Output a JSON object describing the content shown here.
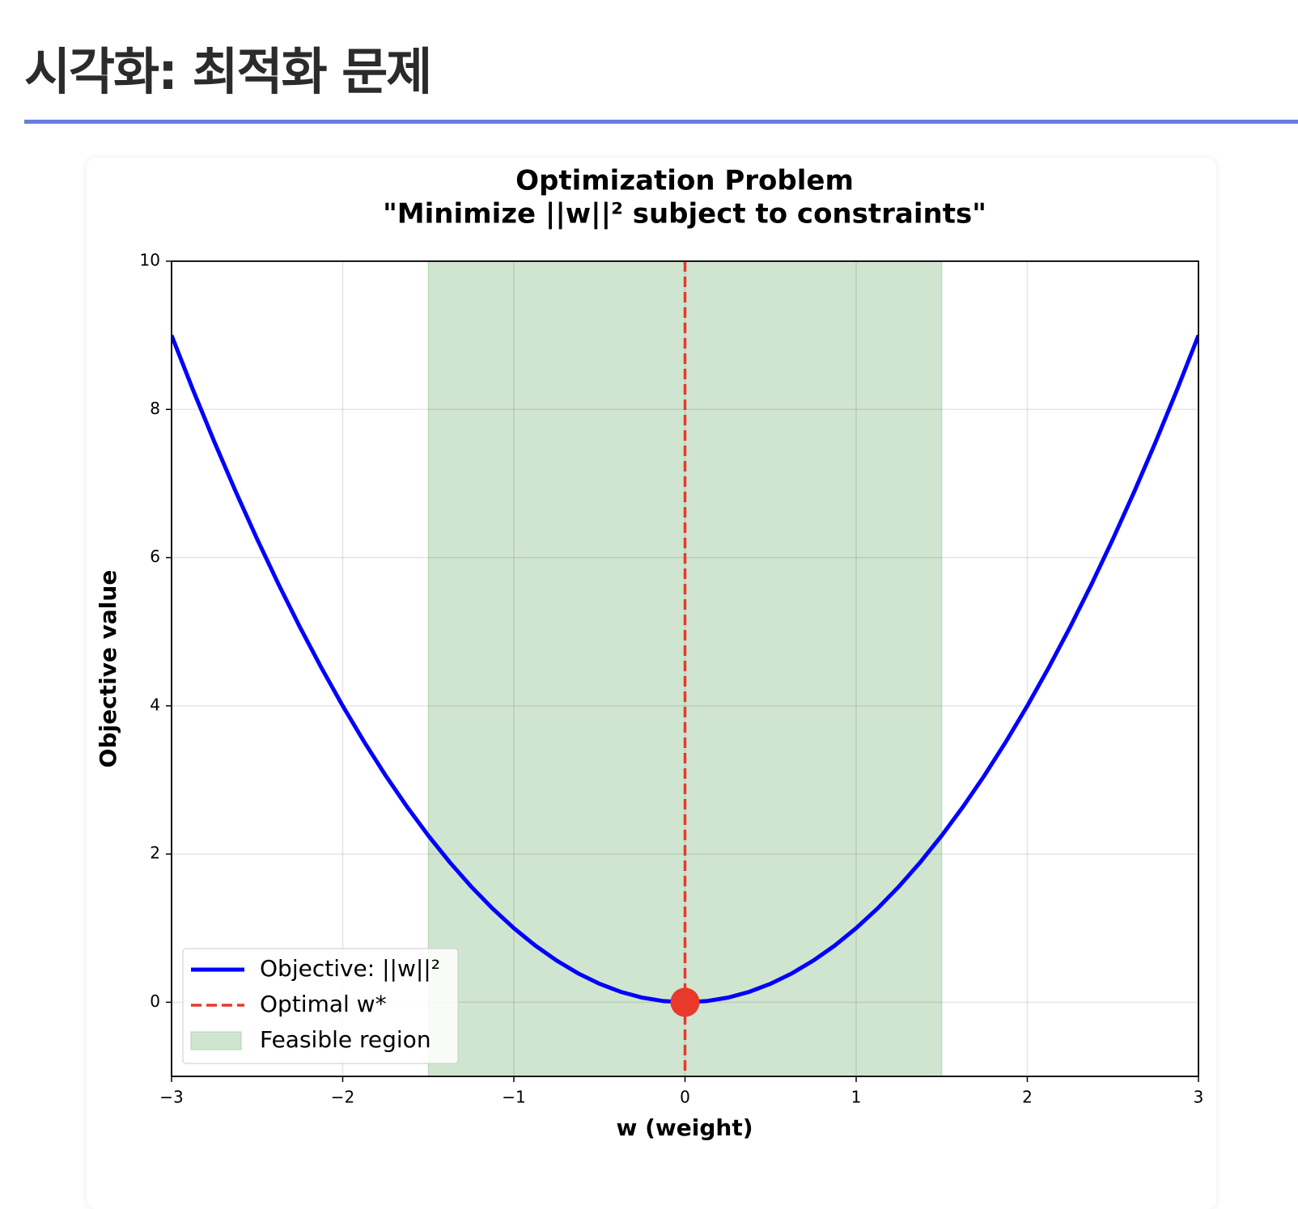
{
  "header": {
    "title": "시각화: 최적화 문제"
  },
  "chart_data": {
    "type": "line",
    "title": "Optimization Problem",
    "subtitle": "\"Minimize ||w||² subject to constraints\"",
    "xlabel": "w (weight)",
    "ylabel": "Objective value",
    "xlim": [
      -3,
      3
    ],
    "ylim": [
      -1,
      10
    ],
    "xticks": [
      {
        "value": -3,
        "label": "−3"
      },
      {
        "value": -2,
        "label": "−2"
      },
      {
        "value": -1,
        "label": "−1"
      },
      0,
      1,
      2,
      3
    ],
    "yticks": [
      0,
      2,
      4,
      6,
      8,
      10
    ],
    "grid": true,
    "legend": "lower left",
    "x": [
      -3,
      -2.875,
      -2.75,
      -2.625,
      -2.5,
      -2.375,
      -2.25,
      -2.125,
      -2,
      -1.875,
      -1.75,
      -1.625,
      -1.5,
      -1.375,
      -1.25,
      -1.125,
      -1,
      -0.875,
      -0.75,
      -0.625,
      -0.5,
      -0.375,
      -0.25,
      -0.125,
      0,
      0.125,
      0.25,
      0.375,
      0.5,
      0.625,
      0.75,
      0.875,
      1,
      1.125,
      1.25,
      1.375,
      1.5,
      1.625,
      1.75,
      1.875,
      2,
      2.125,
      2.25,
      2.375,
      2.5,
      2.625,
      2.75,
      2.875,
      3
    ],
    "series": [
      {
        "name": "Objective: ||w||²",
        "color": "#0000ff",
        "values": [
          9,
          8.265625,
          7.5625,
          6.890625,
          6.25,
          5.640625,
          5.0625,
          4.515625,
          4,
          3.515625,
          3.0625,
          2.640625,
          2.25,
          1.890625,
          1.5625,
          1.265625,
          1,
          0.765625,
          0.5625,
          0.390625,
          0.25,
          0.140625,
          0.0625,
          0.015625,
          0,
          0.015625,
          0.0625,
          0.140625,
          0.25,
          0.390625,
          0.5625,
          0.765625,
          1,
          1.265625,
          1.5625,
          1.890625,
          2.25,
          2.640625,
          3.0625,
          3.515625,
          4,
          4.515625,
          5.0625,
          5.640625,
          6.25,
          6.890625,
          7.5625,
          8.265625,
          9
        ]
      }
    ],
    "optimal": {
      "name": "Optimal w*",
      "color": "#e8392b",
      "x": 0,
      "y": 0
    },
    "region": {
      "name": "Feasible region",
      "color": "#d0e5cf",
      "xrange": [
        -1.5,
        1.5
      ]
    }
  }
}
